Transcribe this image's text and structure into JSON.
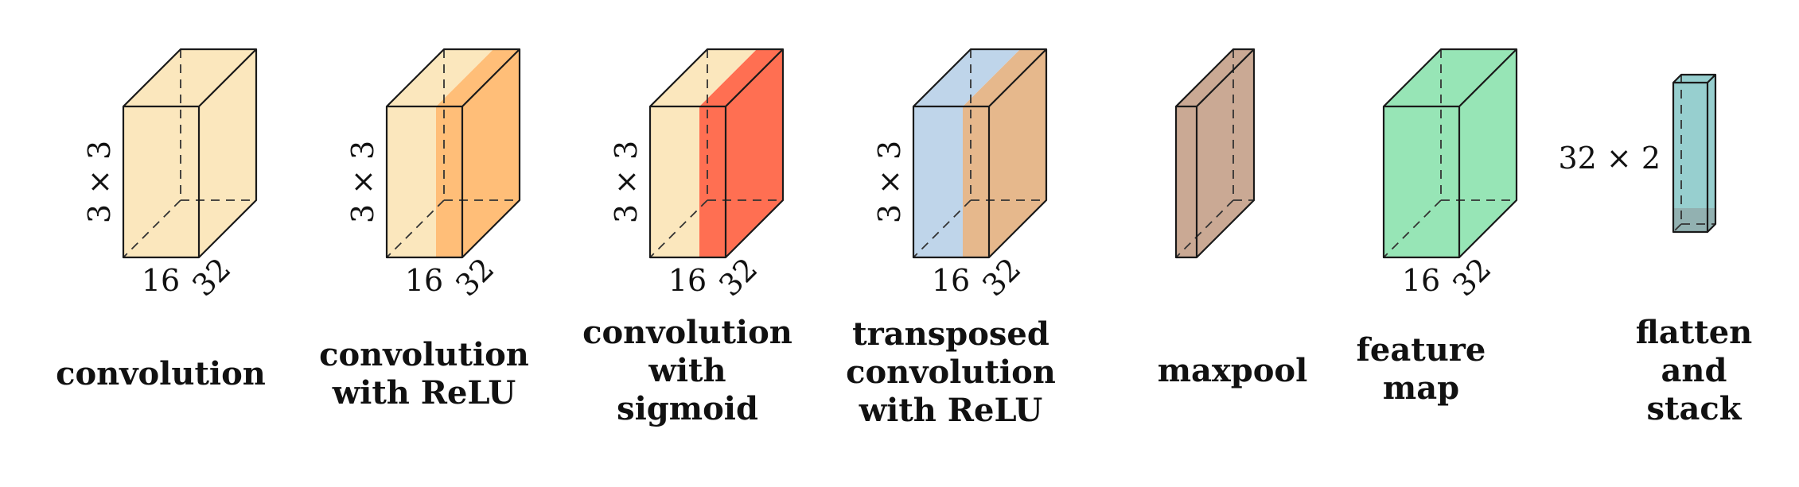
{
  "blocks": [
    {
      "id": "convolution",
      "caption": [
        "convolution"
      ],
      "labels": {
        "height": "3 × 3",
        "width": "16",
        "depth": "32"
      },
      "colors": {
        "front": "#fbe7bd"
      }
    },
    {
      "id": "convolution-relu",
      "caption": [
        "convolution",
        "with ReLU"
      ],
      "labels": {
        "height": "3 × 3",
        "width": "16",
        "depth": "32"
      },
      "colors": {
        "front": "#fbe7bd",
        "activation": "#ffbe78"
      }
    },
    {
      "id": "convolution-sigmoid",
      "caption": [
        "convolution",
        "with",
        "sigmoid"
      ],
      "labels": {
        "height": "3 × 3",
        "width": "16",
        "depth": "32"
      },
      "colors": {
        "front": "#fbe7bd",
        "activation": "#ff6f52"
      }
    },
    {
      "id": "transposed-convolution-relu",
      "caption": [
        "transposed",
        "convolution",
        "with ReLU"
      ],
      "labels": {
        "height": "3 × 3",
        "width": "16",
        "depth": "32"
      },
      "colors": {
        "front": "#bfd5ea",
        "activation": "#e6b88c"
      }
    },
    {
      "id": "maxpool",
      "caption": [
        "maxpool"
      ],
      "labels": {},
      "colors": {
        "front": "#caa994"
      }
    },
    {
      "id": "feature-map",
      "caption": [
        "feature",
        "map"
      ],
      "labels": {
        "width": "16",
        "depth": "32"
      },
      "colors": {
        "front": "#97e5b6"
      }
    },
    {
      "id": "flatten-stack",
      "caption": [
        "flatten",
        "and",
        "stack"
      ],
      "labels": {
        "side": "32 × 2"
      },
      "colors": {
        "front": "#97cfcf"
      }
    }
  ]
}
